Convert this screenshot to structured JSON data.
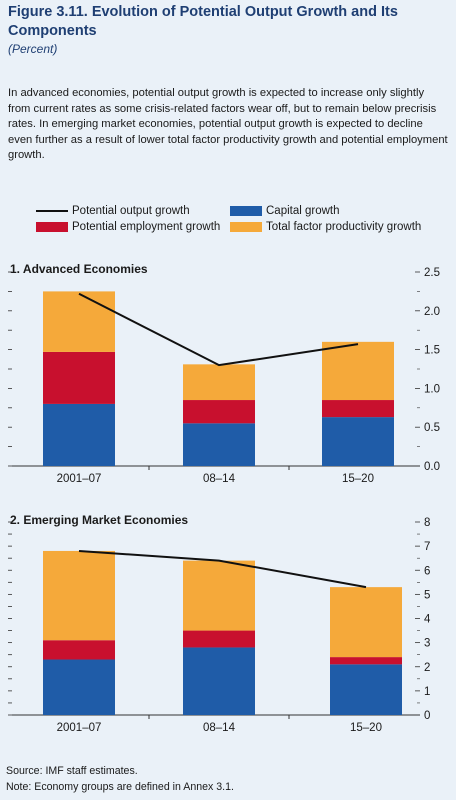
{
  "figure": {
    "title": "Figure 3.11. Evolution of Potential Output Growth and Its Components",
    "subtitle": "(Percent)",
    "paragraph": "In advanced economies, potential output growth is expected to increase only slightly from current rates as some crisis-related factors wear off, but to remain below precrisis rates. In emerging market economies, potential output growth is expected to decline even further as a result of lower total factor productivity growth and potential employment growth.",
    "source": "Source: IMF staff estimates.",
    "note": "Note: Economy groups are defined in Annex 3.1."
  },
  "legend": {
    "potential_output": "Potential output growth",
    "capital": "Capital growth",
    "employment": "Potential employment growth",
    "tfp": "Total factor productivity growth"
  },
  "colors": {
    "capital": "#1f5ca8",
    "employment": "#c8102e",
    "tfp": "#f5a93a",
    "line": "#111111"
  },
  "chart_data": [
    {
      "type": "bar",
      "stacked": true,
      "title": "1. Advanced Economies",
      "categories": [
        "2001–07",
        "08–14",
        "15–20"
      ],
      "series": [
        {
          "name": "Capital growth",
          "values": [
            0.8,
            0.55,
            0.63
          ]
        },
        {
          "name": "Potential employment growth",
          "values": [
            0.67,
            0.3,
            0.22
          ]
        },
        {
          "name": "Total factor productivity growth",
          "values": [
            0.78,
            0.46,
            0.75
          ]
        }
      ],
      "line": {
        "name": "Potential output growth",
        "values": [
          2.22,
          1.3,
          1.57
        ]
      },
      "ylim": [
        0,
        2.5
      ],
      "yticks": [
        0.0,
        0.5,
        1.0,
        1.5,
        2.0,
        2.5
      ],
      "ytick_labels": [
        "0.0",
        "0.5",
        "1.0",
        "1.5",
        "2.0",
        "2.5"
      ]
    },
    {
      "type": "bar",
      "stacked": true,
      "title": "2. Emerging Market Economies",
      "categories": [
        "2001–07",
        "08–14",
        "15–20"
      ],
      "series": [
        {
          "name": "Capital growth",
          "values": [
            2.3,
            2.8,
            2.1
          ]
        },
        {
          "name": "Potential employment growth",
          "values": [
            0.8,
            0.7,
            0.3
          ]
        },
        {
          "name": "Total factor productivity growth",
          "values": [
            3.7,
            2.9,
            2.9
          ]
        }
      ],
      "line": {
        "name": "Potential output growth",
        "values": [
          6.8,
          6.4,
          5.3
        ]
      },
      "ylim": [
        0,
        8
      ],
      "yticks": [
        0,
        1,
        2,
        3,
        4,
        5,
        6,
        7,
        8
      ],
      "ytick_labels": [
        "0",
        "1",
        "2",
        "3",
        "4",
        "5",
        "6",
        "7",
        "8"
      ]
    }
  ]
}
